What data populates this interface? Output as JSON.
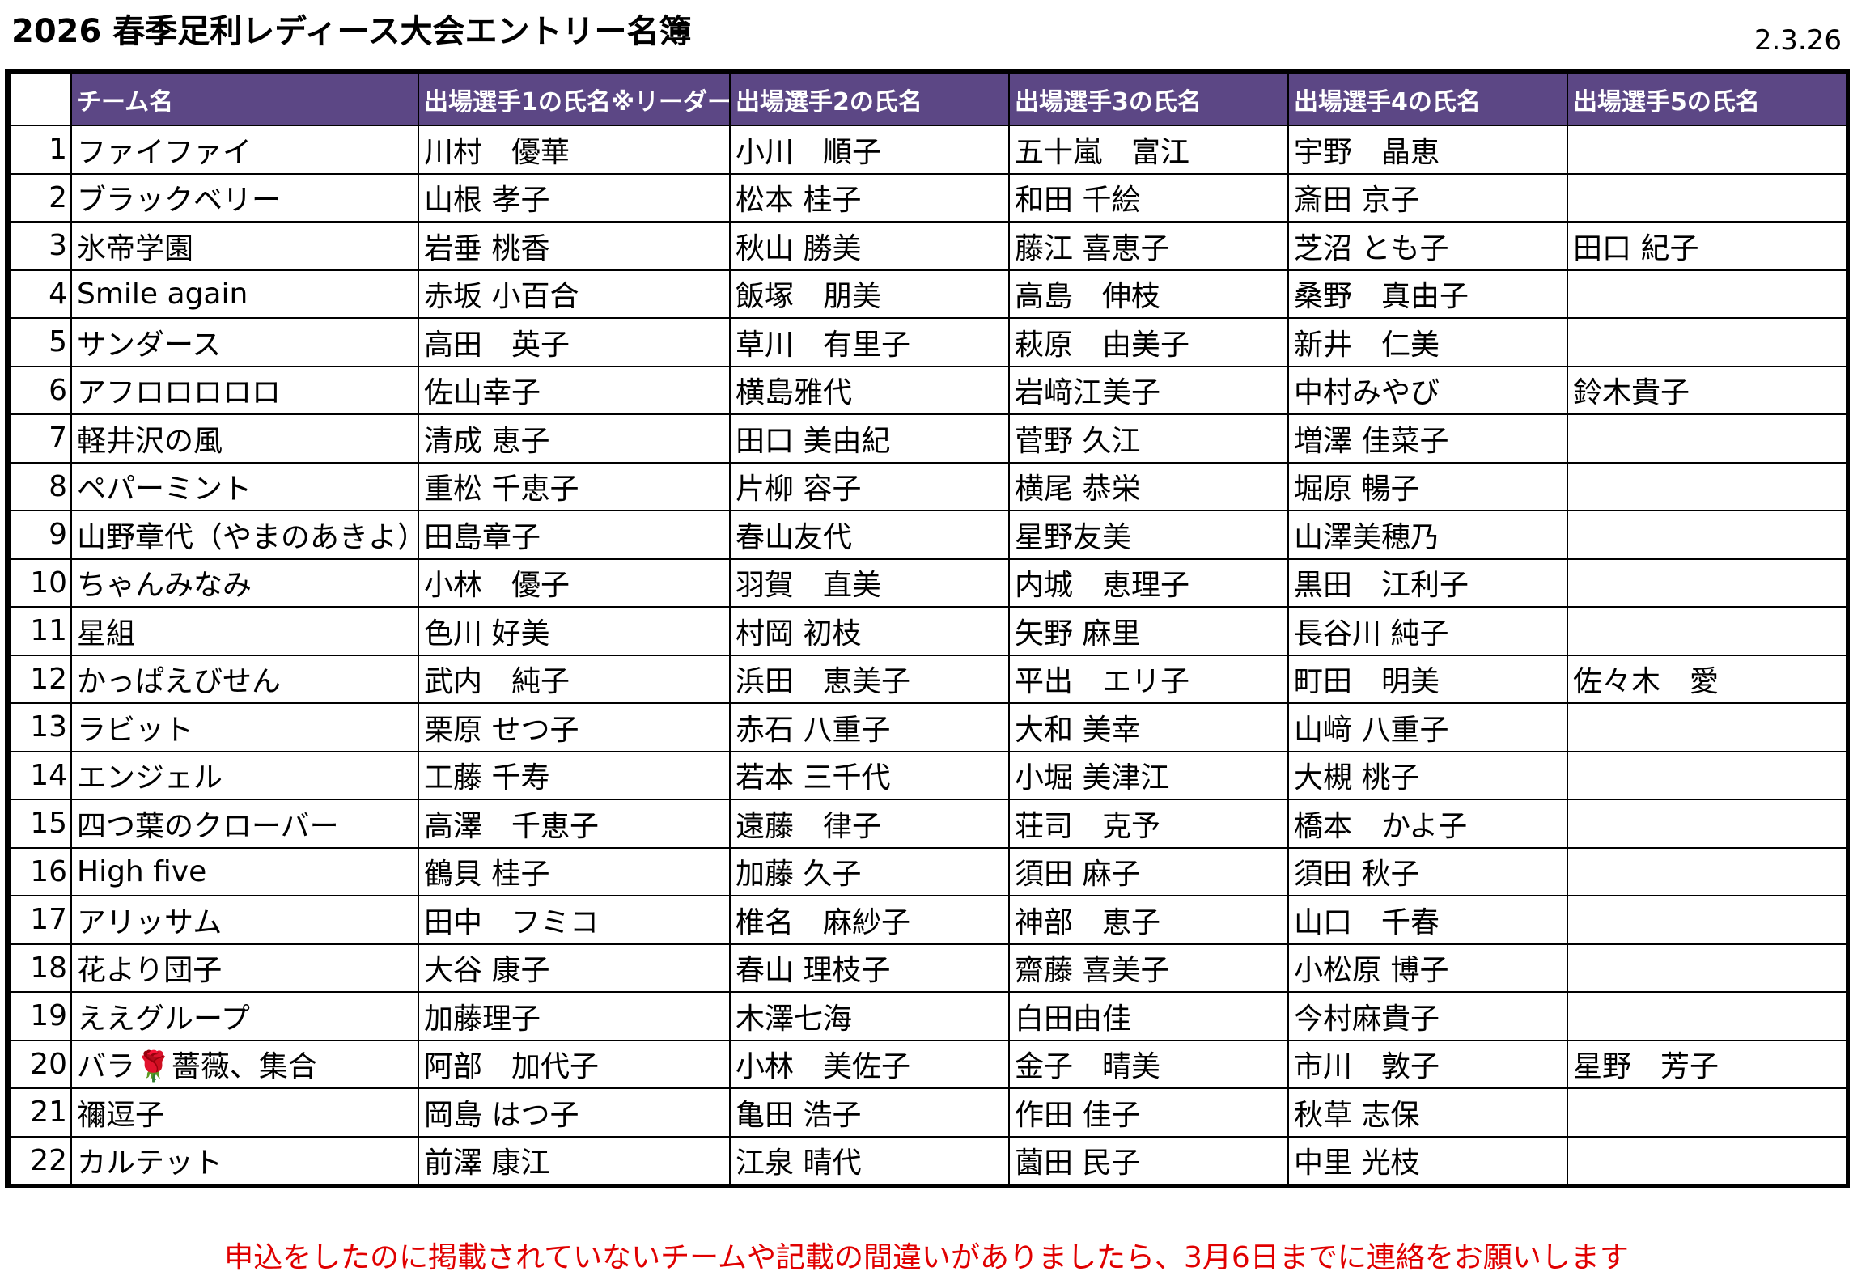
{
  "title": "2026 春季足利レディース大会エントリー名簿",
  "date": "2.3.26",
  "headers": [
    "",
    "チーム名",
    "出場選手1の氏名※リーダー",
    "出場選手2の氏名",
    "出場選手3の氏名",
    "出場選手4の氏名",
    "出場選手5の氏名"
  ],
  "rows": [
    [
      "1",
      "ファイファイ",
      "川村　優華",
      "小川　順子",
      "五十嵐　富江",
      "宇野　晶恵",
      ""
    ],
    [
      "2",
      "ブラックベリー",
      "山根 孝子",
      "松本 桂子",
      "和田 千絵",
      "斎田 京子",
      ""
    ],
    [
      "3",
      "氷帝学園",
      "岩垂 桃香",
      "秋山 勝美",
      "藤江 喜恵子",
      "芝沼 とも子",
      "田口 紀子"
    ],
    [
      "4",
      "Smile again",
      "赤坂 小百合",
      "飯塚　朋美",
      "高島　伸枝",
      "桑野　真由子",
      ""
    ],
    [
      "5",
      "サンダース",
      "高田　英子",
      "草川　有里子",
      "萩原　由美子",
      "新井　仁美",
      ""
    ],
    [
      "6",
      "アフロロロロロ",
      "佐山幸子",
      "横島雅代",
      "岩﨑江美子",
      "中村みやび",
      "鈴木貴子"
    ],
    [
      "7",
      "軽井沢の風",
      "清成 恵子",
      "田口 美由紀",
      "菅野 久江",
      "増澤 佳菜子",
      ""
    ],
    [
      "8",
      "ペパーミント",
      "重松 千恵子",
      "片柳 容子",
      "横尾 恭栄",
      "堀原 暢子",
      ""
    ],
    [
      "9",
      "山野章代（やまのあきよ）",
      "田島章子",
      "春山友代",
      "星野友美",
      "山澤美穂乃",
      ""
    ],
    [
      "10",
      "ちゃんみなみ",
      "小林　優子",
      "羽賀　直美",
      "内城　恵理子",
      "黒田　江利子",
      ""
    ],
    [
      "11",
      "星組",
      "色川 好美",
      "村岡 初枝",
      "矢野 麻里",
      "長谷川 純子",
      ""
    ],
    [
      "12",
      "かっぱえびせん",
      "武内　純子",
      "浜田　恵美子",
      "平出　エリ子",
      "町田　明美",
      "佐々木　愛"
    ],
    [
      "13",
      "ラビット",
      "栗原 せつ子",
      "赤石 八重子",
      "大和 美幸",
      "山﨑 八重子",
      ""
    ],
    [
      "14",
      "エンジェル",
      "工藤 千寿",
      "若本 三千代",
      "小堀 美津江",
      "大槻 桃子",
      ""
    ],
    [
      "15",
      "四つ葉のクローバー",
      "高澤　千恵子",
      "遠藤　律子",
      "荘司　克予",
      "橋本　かよ子",
      ""
    ],
    [
      "16",
      "High five",
      "鶴貝 桂子",
      "加藤 久子",
      "須田 麻子",
      "須田 秋子",
      ""
    ],
    [
      "17",
      "アリッサム",
      "田中　フミコ",
      "椎名　麻紗子",
      "神部　恵子",
      "山口　千春",
      ""
    ],
    [
      "18",
      "花より団子",
      "大谷 康子",
      "春山 理枝子",
      "齋藤 喜美子",
      "小松原 博子",
      ""
    ],
    [
      "19",
      "ええグループ",
      "加藤理子",
      "木澤七海",
      "白田由佳",
      "今村麻貴子",
      ""
    ],
    [
      "20",
      "バラ🌹薔薇、集合",
      "阿部　加代子",
      "小林　美佐子",
      "金子　晴美",
      "市川　敦子",
      "星野　芳子"
    ],
    [
      "21",
      "禰逗子",
      "岡島 はつ子",
      "亀田 浩子",
      "作田 佳子",
      "秋草 志保",
      ""
    ],
    [
      "22",
      "カルテット",
      "前澤 康江",
      "江泉 晴代",
      "薗田 民子",
      "中里 光枝",
      ""
    ]
  ],
  "note": "申込をしたのに掲載されていないチームや記載の間違いがありましたら、3月6日までに連絡をお願いします",
  "colors": {
    "header_bg": "#5c4785",
    "header_text": "#ffffff",
    "note_text": "#e00000"
  }
}
